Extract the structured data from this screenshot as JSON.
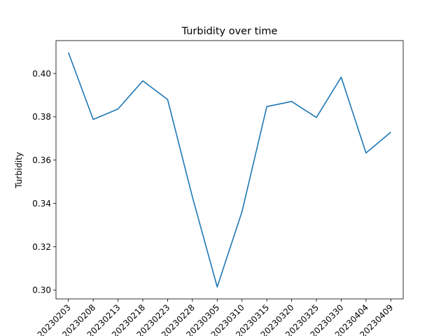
{
  "chart_data": {
    "type": "line",
    "title": "Turbidity over time",
    "xlabel": "",
    "ylabel": "Turbidity",
    "x": [
      "20230203",
      "20230208",
      "20230213",
      "20230218",
      "20230223",
      "20230228",
      "20230305",
      "20230310",
      "20230315",
      "20230320",
      "20230325",
      "20230330",
      "20230404",
      "20230409"
    ],
    "series": [
      {
        "values": [
          0.4097,
          0.3788,
          0.3836,
          0.3966,
          0.388,
          0.343,
          0.3014,
          0.3362,
          0.3847,
          0.3871,
          0.3797,
          0.3983,
          0.3633,
          0.3729
        ]
      }
    ],
    "ylim": [
      0.2959,
      0.4152
    ],
    "yticks": [
      0.3,
      0.32,
      0.34,
      0.36,
      0.38,
      0.4
    ],
    "ytick_labels": [
      "0.30",
      "0.32",
      "0.34",
      "0.36",
      "0.38",
      "0.40"
    ],
    "grid": false,
    "colors": {
      "line": "#1f77b4",
      "axes": "#000000",
      "background": "#ffffff"
    }
  }
}
